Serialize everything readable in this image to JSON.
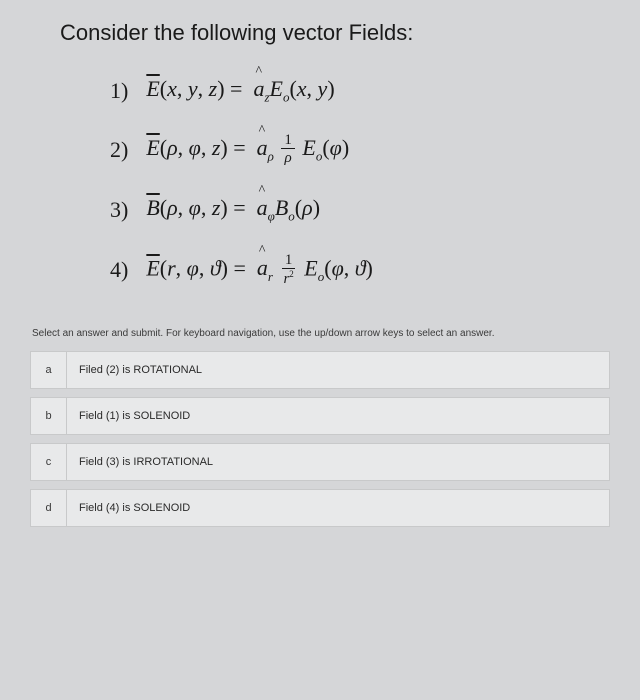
{
  "question": "Consider the following vector Fields:",
  "equations": [
    {
      "num": "1)"
    },
    {
      "num": "2)"
    },
    {
      "num": "3)"
    },
    {
      "num": "4)"
    }
  ],
  "instruction": "Select an answer and submit. For keyboard navigation, use the up/down arrow keys to select an answer.",
  "options": [
    {
      "letter": "a",
      "text": "Filed (2) is ROTATIONAL"
    },
    {
      "letter": "b",
      "text": "Field (1) is SOLENOID"
    },
    {
      "letter": "c",
      "text": "Field (3) is IRROTATIONAL"
    },
    {
      "letter": "d",
      "text": "Field (4) is SOLENOID"
    }
  ],
  "colors": {
    "background": "#d5d6d8",
    "text": "#1a1a1a",
    "option_bg": "#e8e9ea",
    "option_border": "#c8c9ca",
    "instruction": "#3a3a3a"
  }
}
